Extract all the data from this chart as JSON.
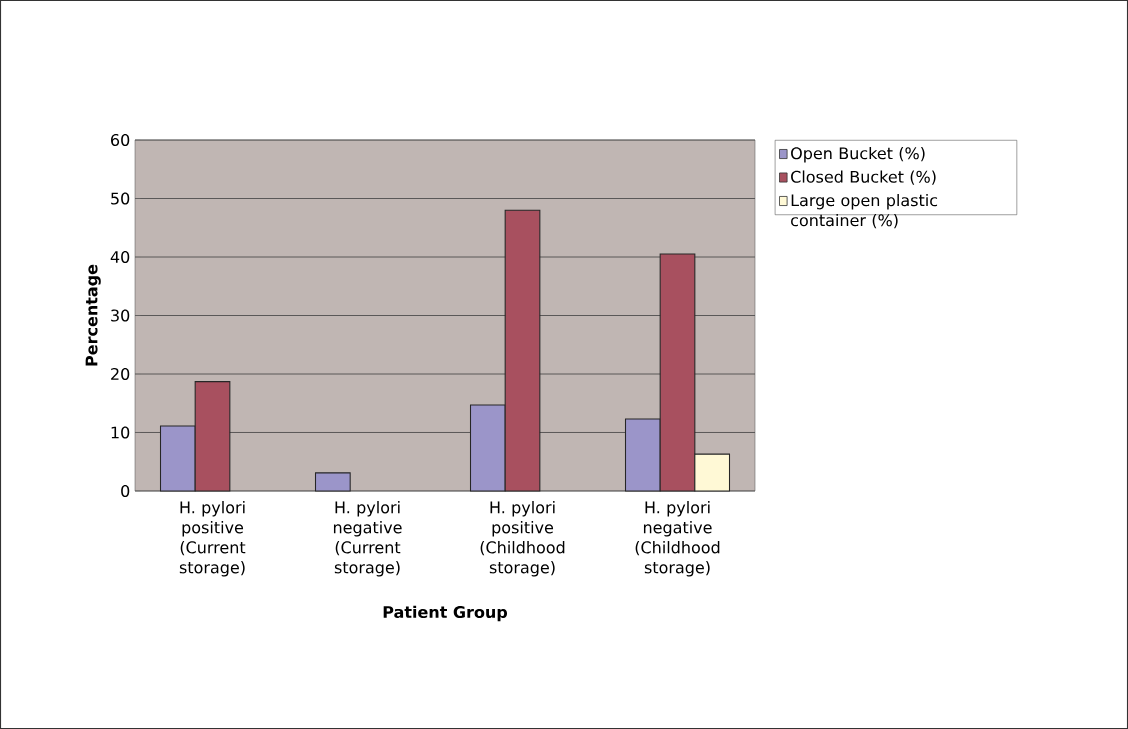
{
  "chart_data": {
    "type": "bar",
    "xlabel": "Patient Group",
    "ylabel": "Percentage",
    "categories": [
      "H. pylori positive (Current storage)",
      "H. pylori negative (Current storage)",
      "H. pylori positive (Childhood storage)",
      "H. pylori negative (Childhood storage)"
    ],
    "series": [
      {
        "name": "Open Bucket (%)",
        "color": "#9b95c9",
        "values": [
          11.1,
          3.1,
          14.7,
          12.3
        ]
      },
      {
        "name": "Closed Bucket (%)",
        "color": "#a8505f",
        "values": [
          18.7,
          null,
          48.0,
          40.5
        ]
      },
      {
        "name": "Large open plastic container (%)",
        "color": "#fff9d6",
        "values": [
          null,
          null,
          null,
          6.3
        ]
      }
    ],
    "ylim": [
      0,
      60
    ],
    "yticks": [
      0,
      10,
      20,
      30,
      40,
      50,
      60
    ],
    "grid": "y",
    "legend": "right"
  }
}
